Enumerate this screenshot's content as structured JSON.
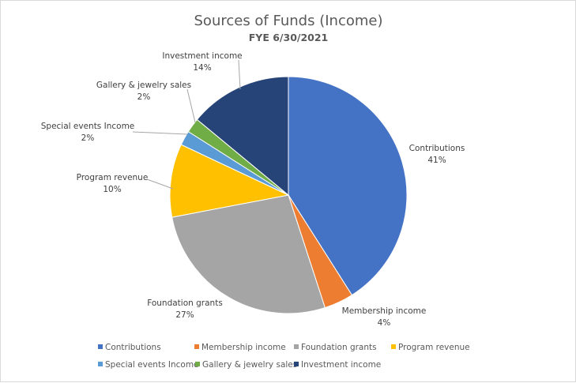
{
  "chart_data": {
    "type": "pie",
    "title": "Sources of Funds (Income)",
    "subtitle": "FYE 6/30/2021",
    "categories": [
      "Contributions",
      "Membership income",
      "Foundation grants",
      "Program revenue",
      "Special events Income",
      "Gallery & jewelry sales",
      "Investment income"
    ],
    "values": [
      41,
      4,
      27,
      10,
      2,
      2,
      14
    ],
    "value_labels": [
      "41%",
      "4%",
      "27%",
      "10%",
      "2%",
      "2%",
      "14%"
    ],
    "colors": [
      "#4472c4",
      "#ed7d31",
      "#a5a5a5",
      "#ffc000",
      "#5b9bd5",
      "#70ad47",
      "#264478"
    ],
    "legend_position": "bottom",
    "start_angle": "12 o'clock",
    "direction": "clockwise"
  }
}
